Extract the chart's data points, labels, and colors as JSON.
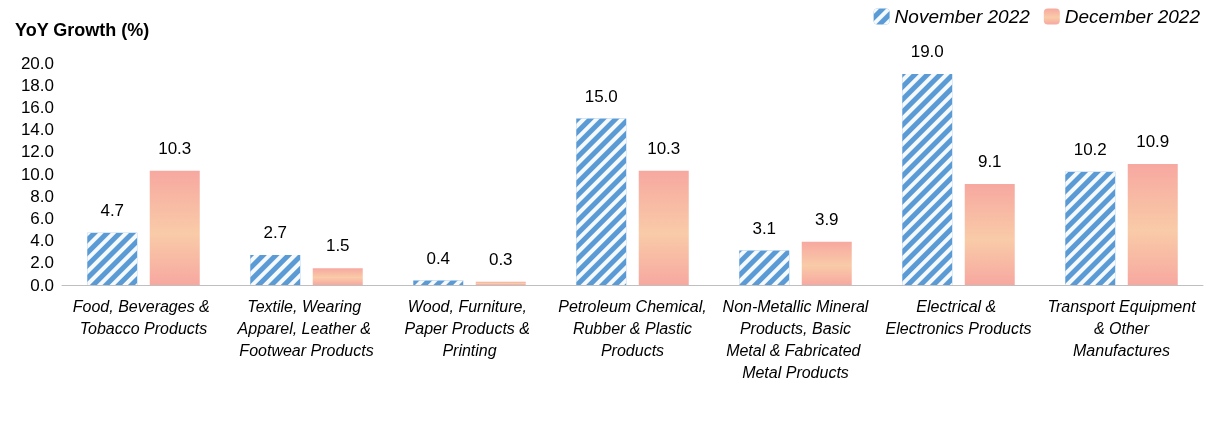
{
  "chart_data": {
    "type": "bar",
    "ylabel": "YoY Growth (%)",
    "categories": [
      "Food, Beverages & Tobacco Products",
      "Textile, Wearing Apparel, Leather & Footwear Products",
      "Wood, Furniture, Paper Products & Printing",
      "Petroleum Chemical, Rubber & Plastic Products",
      "Non-Metallic Mineral Products, Basic Metal & Fabricated Metal Products",
      "Electrical & Electronics Products",
      "Transport Equipment & Other Manufactures"
    ],
    "series": [
      {
        "name": "November 2022",
        "color": "#5b9bd5",
        "values": [
          4.7,
          2.7,
          0.4,
          15.0,
          3.1,
          19.0,
          10.2
        ],
        "value_labels": [
          "4.7",
          "2.7",
          "0.4",
          "15.0",
          "3.1",
          "19.0",
          "10.2"
        ]
      },
      {
        "name": "December 2022",
        "color": "#f7a8a0",
        "values": [
          10.3,
          1.5,
          0.3,
          10.3,
          3.9,
          9.1,
          10.9
        ],
        "value_labels": [
          "10.3",
          "1.5",
          "0.3",
          "10.3",
          "3.9",
          "9.1",
          "10.9"
        ]
      }
    ],
    "ylim": [
      0,
      20
    ],
    "yticks": [
      {
        "value": 0,
        "label": "0.0"
      },
      {
        "value": 2,
        "label": "2.0"
      },
      {
        "value": 4,
        "label": "4.0"
      },
      {
        "value": 6,
        "label": "6.0"
      },
      {
        "value": 8,
        "label": "8.0"
      },
      {
        "value": 10,
        "label": "10.0"
      },
      {
        "value": 12,
        "label": "12.0"
      },
      {
        "value": 14,
        "label": "14.0"
      },
      {
        "value": 16,
        "label": "16.0"
      },
      {
        "value": 18,
        "label": "18.0"
      },
      {
        "value": 20,
        "label": "20.0"
      }
    ],
    "grid": false,
    "legend": "top right"
  }
}
